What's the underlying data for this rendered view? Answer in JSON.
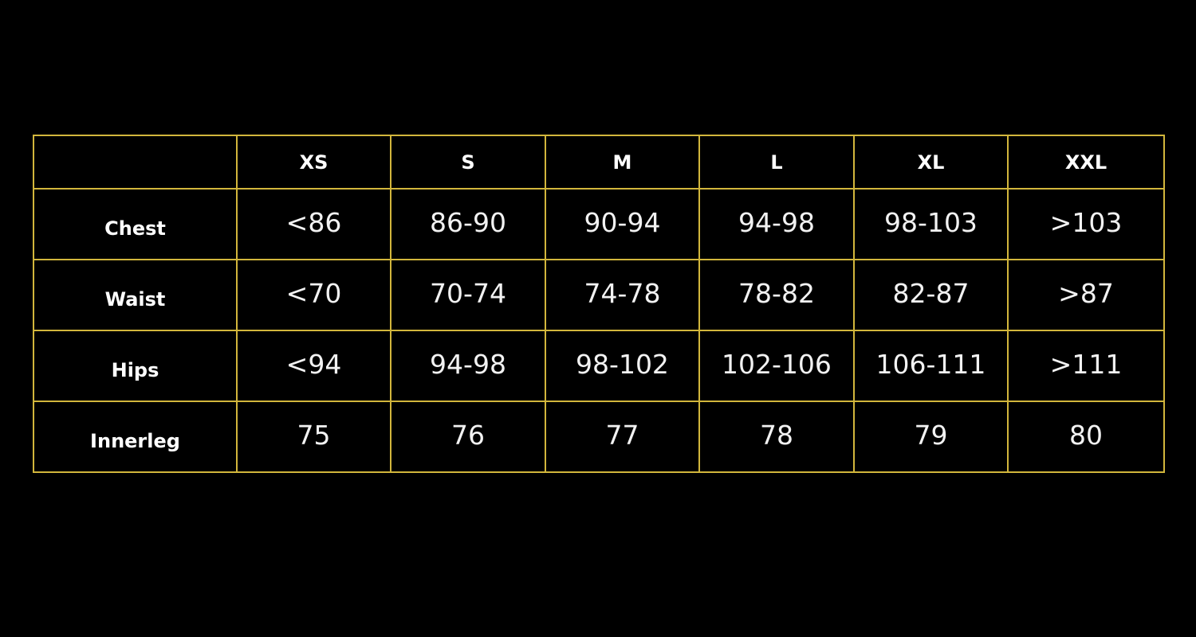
{
  "size_chart": {
    "columns": [
      "",
      "XS",
      "S",
      "M",
      "L",
      "XL",
      "XXL"
    ],
    "rows": [
      {
        "label": "Chest",
        "values": [
          "<86",
          "86-90",
          "90-94",
          "94-98",
          "98-103",
          ">103"
        ]
      },
      {
        "label": "Waist",
        "values": [
          "<70",
          "70-74",
          "74-78",
          "78-82",
          "82-87",
          ">87"
        ]
      },
      {
        "label": "Hips",
        "values": [
          "<94",
          "94-98",
          "98-102",
          "102-106",
          "106-111",
          ">111"
        ]
      },
      {
        "label": "Innerleg",
        "values": [
          "75",
          "76",
          "77",
          "78",
          "79",
          "80"
        ]
      }
    ],
    "border_color": "#d2b63c",
    "background_color": "#000000"
  }
}
